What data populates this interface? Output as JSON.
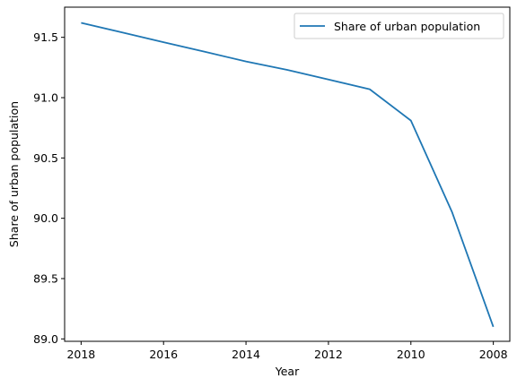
{
  "chart_data": {
    "type": "line",
    "title": "",
    "xlabel": "Year",
    "ylabel": "Share of urban population",
    "x_axis": {
      "reversed": true,
      "lim": [
        2018.4,
        2007.6
      ],
      "ticks": [
        2018,
        2016,
        2014,
        2012,
        2010,
        2008
      ]
    },
    "y_axis": {
      "lim": [
        88.98,
        91.75
      ],
      "ticks": [
        89.0,
        89.5,
        90.0,
        90.5,
        91.0,
        91.5
      ],
      "tick_labels": [
        "89.0",
        "89.5",
        "90.0",
        "90.5",
        "91.0",
        "91.5"
      ]
    },
    "grid": false,
    "legend": {
      "placement": "upper right"
    },
    "series": [
      {
        "name": "Share of urban population",
        "color": "#1f77b4",
        "x": [
          2018,
          2017,
          2016,
          2015,
          2014,
          2013,
          2012,
          2011,
          2010,
          2009,
          2008
        ],
        "y": [
          91.62,
          91.54,
          91.46,
          91.38,
          91.3,
          91.23,
          91.15,
          91.07,
          90.81,
          90.05,
          89.1
        ]
      }
    ]
  }
}
